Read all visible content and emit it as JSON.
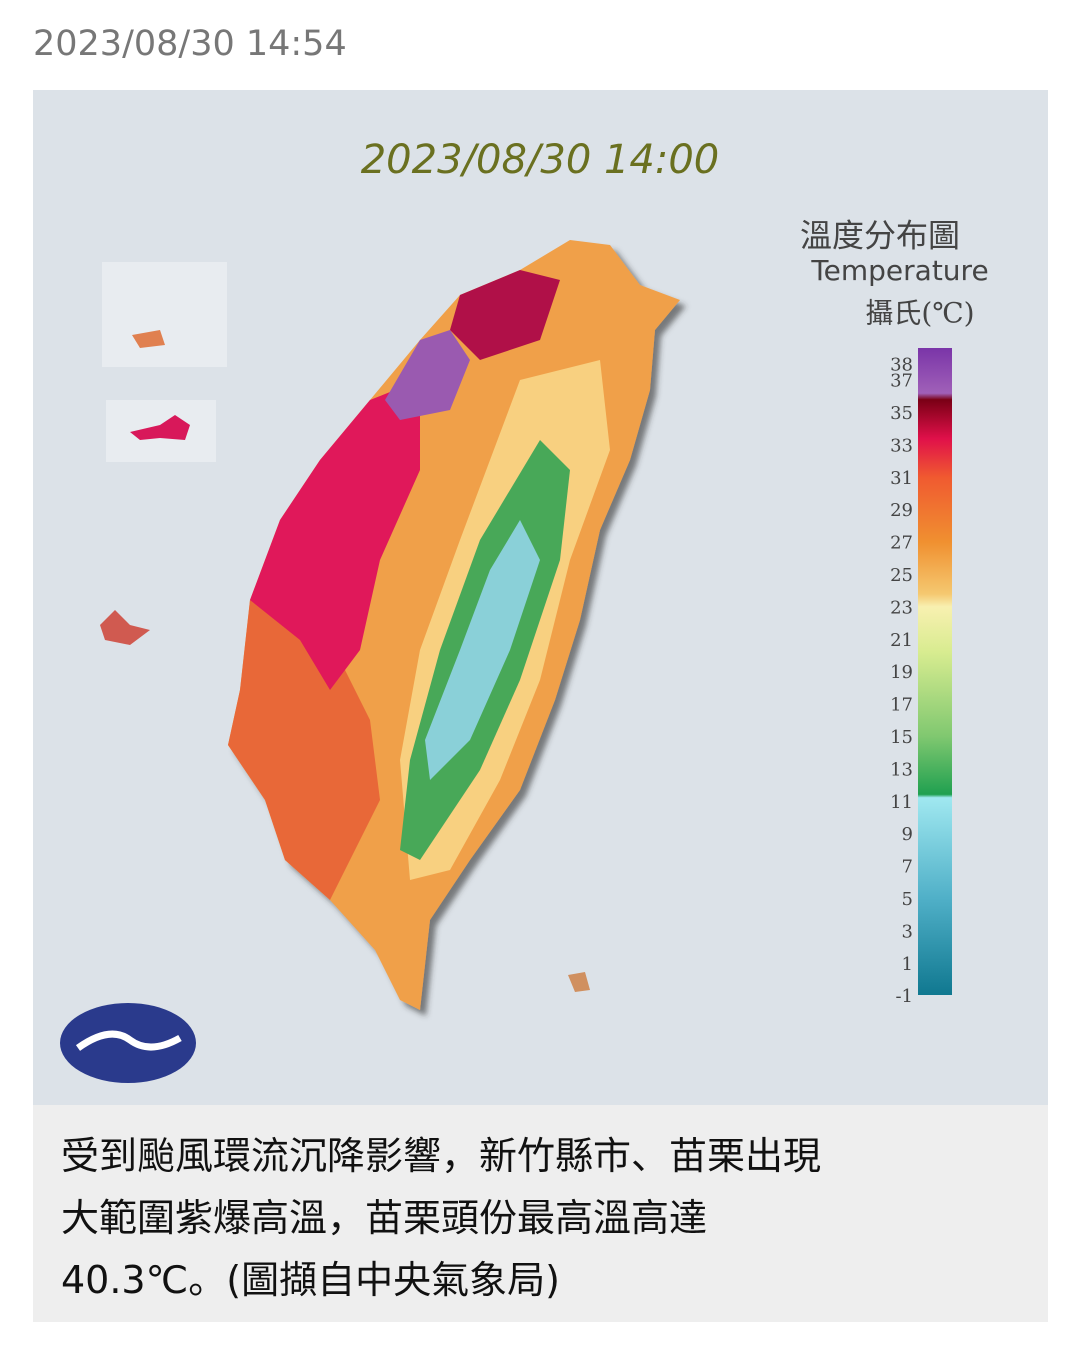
{
  "post": {
    "timestamp": "2023/08/30 14:54"
  },
  "map": {
    "title": "2023/08/30 14:00",
    "legend": {
      "title": "溫度分布圖",
      "subtitle": "Temperature",
      "unit": "攝氏(℃)",
      "ticks": [
        38,
        37,
        35,
        33,
        31,
        29,
        27,
        25,
        23,
        21,
        19,
        17,
        15,
        13,
        11,
        9,
        7,
        5,
        3,
        1,
        -1
      ]
    }
  },
  "caption": {
    "lines": [
      "受到颱風環流沉降影響，新竹縣市、苗栗出現",
      "大範圍紫爆高溫，苗栗頭份最高溫高達",
      "40.3℃。(圖擷自中央氣象局)"
    ]
  }
}
